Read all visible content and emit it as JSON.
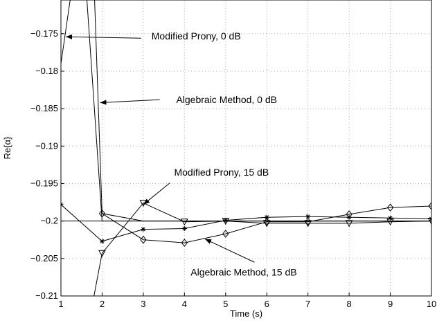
{
  "chart_data": {
    "type": "line",
    "title": "",
    "xlabel": "Time (s)",
    "ylabel": "Re{α}",
    "xlim": [
      1,
      10
    ],
    "ylim": [
      -0.21,
      -0.1705
    ],
    "x_ticks": [
      1,
      2,
      3,
      4,
      5,
      6,
      7,
      8,
      9,
      10
    ],
    "x_tick_labels": [
      "1",
      "2",
      "3",
      "4",
      "5",
      "6",
      "7",
      "8",
      "9",
      "10"
    ],
    "y_ticks": [
      -0.21,
      -0.205,
      -0.2,
      -0.195,
      -0.19,
      -0.185,
      -0.18,
      -0.175
    ],
    "y_tick_labels": [
      "−0.21",
      "−0.205",
      "−0.2",
      "−0.195",
      "−0.19",
      "−0.185",
      "−0.18",
      "−0.175"
    ],
    "grid": true,
    "reference_line": -0.2,
    "series": [
      {
        "id": "mp0",
        "marker": "none",
        "x": [
          1,
          1.5,
          2,
          3,
          4,
          5,
          6,
          7,
          8,
          9,
          10
        ],
        "y": [
          -0.179,
          -0.16,
          -0.2,
          -0.2,
          -0.2,
          -0.2,
          -0.2,
          -0.2,
          -0.2,
          -0.2,
          -0.2
        ]
      },
      {
        "id": "alg0",
        "marker": "none",
        "x": [
          1.75,
          2,
          3,
          4,
          5,
          6,
          7,
          8,
          9,
          10
        ],
        "y": [
          -0.16,
          -0.199,
          -0.2,
          -0.2,
          -0.2,
          -0.2,
          -0.2,
          -0.2,
          -0.2,
          -0.2
        ]
      },
      {
        "id": "mp15",
        "marker": "triangle-down",
        "x": [
          1.75,
          2,
          3,
          4,
          5,
          6,
          7,
          8,
          9,
          10
        ],
        "y": [
          -0.2115,
          -0.2043,
          -0.1976,
          -0.2001,
          -0.2,
          -0.2003,
          -0.2003,
          -0.2003,
          -0.2001,
          -0.2
        ],
        "marker_x": [
          2,
          3,
          4,
          5,
          6,
          7,
          8,
          9,
          10
        ]
      },
      {
        "id": "alg15",
        "marker": "diamond",
        "x": [
          2,
          3,
          4,
          5,
          6,
          7,
          8,
          9,
          10
        ],
        "y": [
          -0.199,
          -0.2025,
          -0.2029,
          -0.2017,
          -0.2001,
          -0.2001,
          -0.1991,
          -0.1982,
          -0.198
        ],
        "marker_x": [
          2,
          3,
          4,
          5,
          6,
          7,
          8,
          9,
          10
        ]
      },
      {
        "id": "star",
        "marker": "star",
        "x": [
          1,
          2,
          3,
          4,
          5,
          6,
          7,
          8,
          9,
          10
        ],
        "y": [
          -0.1978,
          -0.2027,
          -0.2011,
          -0.201,
          -0.1999,
          -0.1995,
          -0.1994,
          -0.1995,
          -0.1996,
          -0.1997
        ],
        "marker_x": [
          1,
          2,
          3,
          4,
          5,
          6,
          7,
          8,
          9,
          10
        ]
      }
    ],
    "annotations": [
      {
        "id": "ann-mp0",
        "text": "Modified Prony, 0 dB",
        "text_at": [
          3.2,
          -0.1753
        ],
        "arrow_from": [
          2.95,
          -0.1756
        ],
        "arrow_to": [
          1.12,
          -0.1754
        ]
      },
      {
        "id": "ann-alg0",
        "text": "Algebraic Method, 0 dB",
        "text_at": [
          3.8,
          -0.1838
        ],
        "arrow_from": [
          3.4,
          -0.1838
        ],
        "arrow_to": [
          1.95,
          -0.1842
        ]
      },
      {
        "id": "ann-mp15",
        "text": "Modified Prony, 15 dB",
        "text_at": [
          3.75,
          -0.1935
        ],
        "arrow_from": [
          3.65,
          -0.1949
        ],
        "arrow_to": [
          3.0,
          -0.1978
        ]
      },
      {
        "id": "ann-alg15",
        "text": "Algebraic Method, 15 dB",
        "text_at": [
          4.15,
          -0.2068
        ],
        "arrow_from": [
          5.7,
          -0.2055
        ],
        "arrow_to": [
          4.5,
          -0.2024
        ]
      }
    ]
  }
}
